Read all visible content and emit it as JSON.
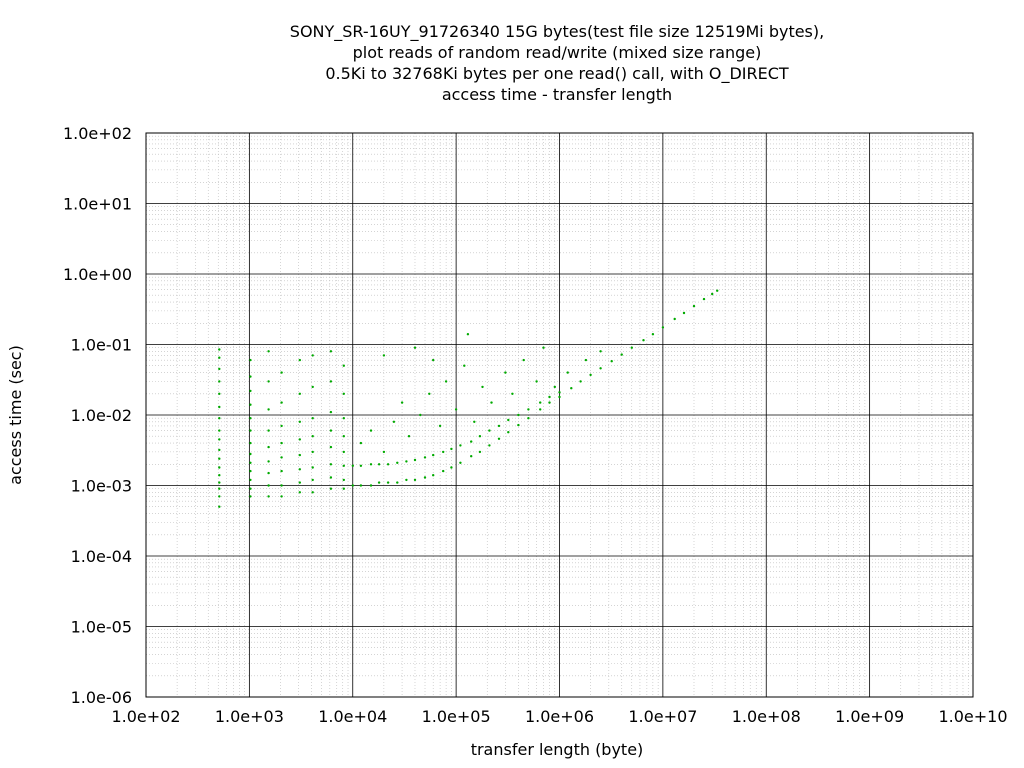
{
  "chart_data": {
    "type": "scatter",
    "title_lines": [
      "SONY_SR-16UY_91726340 15G bytes(test file size 12519Mi bytes),",
      "plot reads of random read/write (mixed size range)",
      "0.5Ki to 32768Ki bytes per one read() call, with O_DIRECT",
      "access time - transfer length"
    ],
    "xlabel": "transfer length (byte)",
    "ylabel": "access time (sec)",
    "x_scale": "log",
    "y_scale": "log",
    "xlim": [
      100,
      10000000000
    ],
    "ylim": [
      1e-06,
      100
    ],
    "x_ticks": [
      {
        "value": 100,
        "label": "1.0e+02"
      },
      {
        "value": 1000,
        "label": "1.0e+03"
      },
      {
        "value": 10000,
        "label": "1.0e+04"
      },
      {
        "value": 100000,
        "label": "1.0e+05"
      },
      {
        "value": 1000000,
        "label": "1.0e+06"
      },
      {
        "value": 10000000,
        "label": "1.0e+07"
      },
      {
        "value": 100000000,
        "label": "1.0e+08"
      },
      {
        "value": 1000000000,
        "label": "1.0e+09"
      },
      {
        "value": 10000000000,
        "label": "1.0e+10"
      }
    ],
    "y_ticks": [
      {
        "value": 1e-06,
        "label": "1.0e-06"
      },
      {
        "value": 1e-05,
        "label": "1.0e-05"
      },
      {
        "value": 0.0001,
        "label": "1.0e-04"
      },
      {
        "value": 0.001,
        "label": "1.0e-03"
      },
      {
        "value": 0.01,
        "label": "1.0e-02"
      },
      {
        "value": 0.1,
        "label": "1.0e-01"
      },
      {
        "value": 1,
        "label": "1.0e+00"
      },
      {
        "value": 10,
        "label": "1.0e+01"
      },
      {
        "value": 100,
        "label": "1.0e+02"
      }
    ],
    "grid": true,
    "minor_grid": true,
    "point_color": "#00aa00",
    "series": [
      {
        "points": [
          [
            512,
            0.0005
          ],
          [
            512,
            0.0007
          ],
          [
            512,
            0.0009
          ],
          [
            512,
            0.0011
          ],
          [
            512,
            0.0014
          ],
          [
            512,
            0.0018
          ],
          [
            512,
            0.0024
          ],
          [
            512,
            0.0032
          ],
          [
            512,
            0.0045
          ],
          [
            512,
            0.006
          ],
          [
            512,
            0.009
          ],
          [
            512,
            0.013
          ],
          [
            512,
            0.02
          ],
          [
            512,
            0.03
          ],
          [
            512,
            0.045
          ],
          [
            512,
            0.065
          ],
          [
            512,
            0.085
          ],
          [
            1024,
            0.0007
          ],
          [
            1024,
            0.0009
          ],
          [
            1024,
            0.0012
          ],
          [
            1024,
            0.0016
          ],
          [
            1024,
            0.0021
          ],
          [
            1024,
            0.0028
          ],
          [
            1024,
            0.004
          ],
          [
            1024,
            0.006
          ],
          [
            1024,
            0.009
          ],
          [
            1024,
            0.014
          ],
          [
            1024,
            0.022
          ],
          [
            1024,
            0.035
          ],
          [
            1024,
            0.06
          ],
          [
            1536,
            0.0007
          ],
          [
            1536,
            0.001
          ],
          [
            1536,
            0.0015
          ],
          [
            1536,
            0.0022
          ],
          [
            1536,
            0.0035
          ],
          [
            1536,
            0.006
          ],
          [
            1536,
            0.012
          ],
          [
            1536,
            0.03
          ],
          [
            1536,
            0.08
          ],
          [
            2048,
            0.0007
          ],
          [
            2048,
            0.001
          ],
          [
            2048,
            0.0016
          ],
          [
            2048,
            0.0025
          ],
          [
            2048,
            0.004
          ],
          [
            2048,
            0.007
          ],
          [
            2048,
            0.015
          ],
          [
            2048,
            0.04
          ],
          [
            3072,
            0.0008
          ],
          [
            3072,
            0.0011
          ],
          [
            3072,
            0.0017
          ],
          [
            3072,
            0.0027
          ],
          [
            3072,
            0.0045
          ],
          [
            3072,
            0.008
          ],
          [
            3072,
            0.02
          ],
          [
            3072,
            0.06
          ],
          [
            4096,
            0.0008
          ],
          [
            4096,
            0.0012
          ],
          [
            4096,
            0.0018
          ],
          [
            4096,
            0.003
          ],
          [
            4096,
            0.005
          ],
          [
            4096,
            0.009
          ],
          [
            4096,
            0.025
          ],
          [
            4096,
            0.07
          ],
          [
            6144,
            0.0009
          ],
          [
            6144,
            0.0013
          ],
          [
            6144,
            0.002
          ],
          [
            6144,
            0.0035
          ],
          [
            6144,
            0.006
          ],
          [
            6144,
            0.011
          ],
          [
            6144,
            0.03
          ],
          [
            6144,
            0.08
          ],
          [
            8192,
            0.0009
          ],
          [
            8192,
            0.0012
          ],
          [
            8192,
            0.0019
          ],
          [
            8192,
            0.003
          ],
          [
            8192,
            0.005
          ],
          [
            8192,
            0.009
          ],
          [
            8192,
            0.02
          ],
          [
            8192,
            0.05
          ],
          [
            10000,
            0.001
          ],
          [
            10000,
            0.0019
          ],
          [
            12000,
            0.001
          ],
          [
            12000,
            0.0019
          ],
          [
            15000,
            0.001
          ],
          [
            15000,
            0.002
          ],
          [
            18000,
            0.0011
          ],
          [
            18000,
            0.002
          ],
          [
            22000,
            0.0011
          ],
          [
            22000,
            0.002
          ],
          [
            27000,
            0.0011
          ],
          [
            27000,
            0.0021
          ],
          [
            33000,
            0.0012
          ],
          [
            33000,
            0.0022
          ],
          [
            40000,
            0.0012
          ],
          [
            40000,
            0.0023
          ],
          [
            50000,
            0.0013
          ],
          [
            50000,
            0.0025
          ],
          [
            60000,
            0.0014
          ],
          [
            60000,
            0.0027
          ],
          [
            75000,
            0.0016
          ],
          [
            75000,
            0.003
          ],
          [
            90000,
            0.0018
          ],
          [
            90000,
            0.0033
          ],
          [
            110000,
            0.0021
          ],
          [
            110000,
            0.0037
          ],
          [
            140000,
            0.0026
          ],
          [
            140000,
            0.0042
          ],
          [
            170000,
            0.003
          ],
          [
            170000,
            0.005
          ],
          [
            210000,
            0.0037
          ],
          [
            210000,
            0.006
          ],
          [
            260000,
            0.0046
          ],
          [
            260000,
            0.007
          ],
          [
            320000,
            0.0057
          ],
          [
            320000,
            0.0085
          ],
          [
            400000,
            0.0072
          ],
          [
            400000,
            0.01
          ],
          [
            500000,
            0.009
          ],
          [
            500000,
            0.012
          ],
          [
            650000,
            0.012
          ],
          [
            650000,
            0.015
          ],
          [
            800000,
            0.015
          ],
          [
            800000,
            0.018
          ],
          [
            1000000,
            0.018
          ],
          [
            1000000,
            0.021
          ],
          [
            1300000,
            0.024
          ],
          [
            1600000,
            0.03
          ],
          [
            2000000,
            0.037
          ],
          [
            2500000,
            0.046
          ],
          [
            3200000,
            0.058
          ],
          [
            4000000,
            0.072
          ],
          [
            5000000,
            0.09
          ],
          [
            6500000,
            0.115
          ],
          [
            8000000,
            0.14
          ],
          [
            10000000,
            0.175
          ],
          [
            13000000,
            0.23
          ],
          [
            16000000,
            0.28
          ],
          [
            20000000,
            0.35
          ],
          [
            25000000,
            0.44
          ],
          [
            30000000,
            0.52
          ],
          [
            33554432,
            0.58
          ],
          [
            12000,
            0.004
          ],
          [
            15000,
            0.006
          ],
          [
            20000,
            0.003
          ],
          [
            25000,
            0.008
          ],
          [
            30000,
            0.015
          ],
          [
            35000,
            0.005
          ],
          [
            45000,
            0.01
          ],
          [
            55000,
            0.02
          ],
          [
            70000,
            0.007
          ],
          [
            80000,
            0.03
          ],
          [
            100000,
            0.012
          ],
          [
            120000,
            0.05
          ],
          [
            150000,
            0.008
          ],
          [
            180000,
            0.025
          ],
          [
            220000,
            0.015
          ],
          [
            300000,
            0.04
          ],
          [
            350000,
            0.02
          ],
          [
            450000,
            0.06
          ],
          [
            600000,
            0.03
          ],
          [
            700000,
            0.09
          ],
          [
            20000,
            0.07
          ],
          [
            40000,
            0.09
          ],
          [
            60000,
            0.06
          ],
          [
            130000,
            0.14
          ],
          [
            900000,
            0.025
          ],
          [
            1200000,
            0.04
          ],
          [
            1800000,
            0.06
          ],
          [
            2500000,
            0.08
          ]
        ]
      }
    ]
  }
}
